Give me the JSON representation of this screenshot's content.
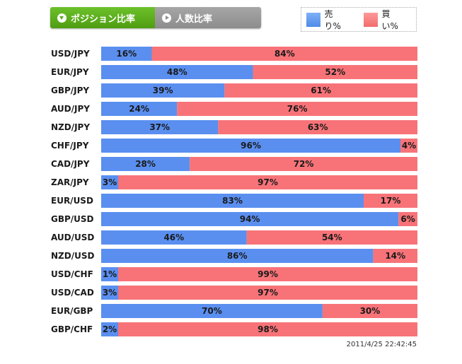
{
  "tabs": [
    {
      "label": "ポジション比率",
      "active": true
    },
    {
      "label": "人数比率",
      "active": false
    }
  ],
  "legend": {
    "sell_label": "売り%",
    "buy_label": "買い%"
  },
  "colors": {
    "sell": "#5a8ff0",
    "buy": "#f77378",
    "active_tab": "#5aa81a",
    "inactive_tab": "#999999"
  },
  "timestamp": "2011/4/25 22:42:45",
  "chart_data": {
    "type": "bar",
    "orientation": "horizontal-stacked-100",
    "categories": [
      "USD/JPY",
      "EUR/JPY",
      "GBP/JPY",
      "AUD/JPY",
      "NZD/JPY",
      "CHF/JPY",
      "CAD/JPY",
      "ZAR/JPY",
      "EUR/USD",
      "GBP/USD",
      "AUD/USD",
      "NZD/USD",
      "USD/CHF",
      "USD/CAD",
      "EUR/GBP",
      "GBP/CHF"
    ],
    "series": [
      {
        "name": "売り%",
        "values": [
          16,
          48,
          39,
          24,
          37,
          96,
          28,
          3,
          83,
          94,
          46,
          86,
          1,
          3,
          70,
          2
        ]
      },
      {
        "name": "買い%",
        "values": [
          84,
          52,
          61,
          76,
          63,
          4,
          72,
          97,
          17,
          6,
          54,
          14,
          99,
          97,
          30,
          98
        ]
      }
    ],
    "xlim": [
      0,
      100
    ],
    "legend_position": "top-right"
  }
}
